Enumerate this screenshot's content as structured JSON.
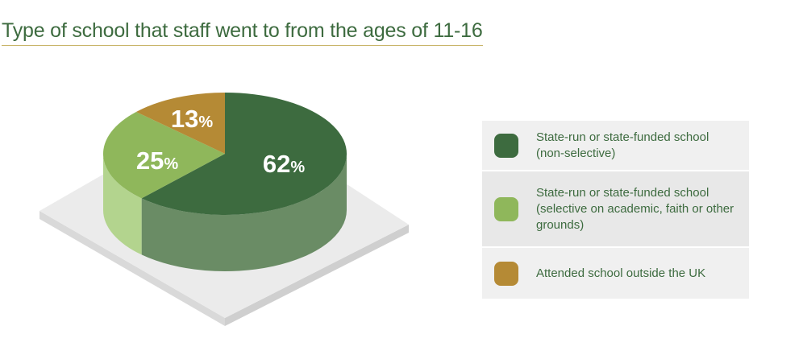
{
  "chart_data": {
    "type": "pie",
    "title": "Type of school that staff went to from the ages of 11-16",
    "slices": [
      {
        "label": "State-run or state-funded school (non-selective)",
        "value": 62,
        "display": "62",
        "color": "#3d6b3f",
        "side_color": "#6a8c65"
      },
      {
        "label": "State-run or state-funded school (selective on academic, faith or other grounds)",
        "value": 25,
        "display": "25",
        "color": "#8fb75b",
        "side_color": "#b3d48e"
      },
      {
        "label": "Attended school outside the UK",
        "value": 13,
        "display": "13",
        "color": "#b58a35",
        "side_color": "#8a6a2a"
      }
    ],
    "unit": "%",
    "legend_position": "right"
  }
}
